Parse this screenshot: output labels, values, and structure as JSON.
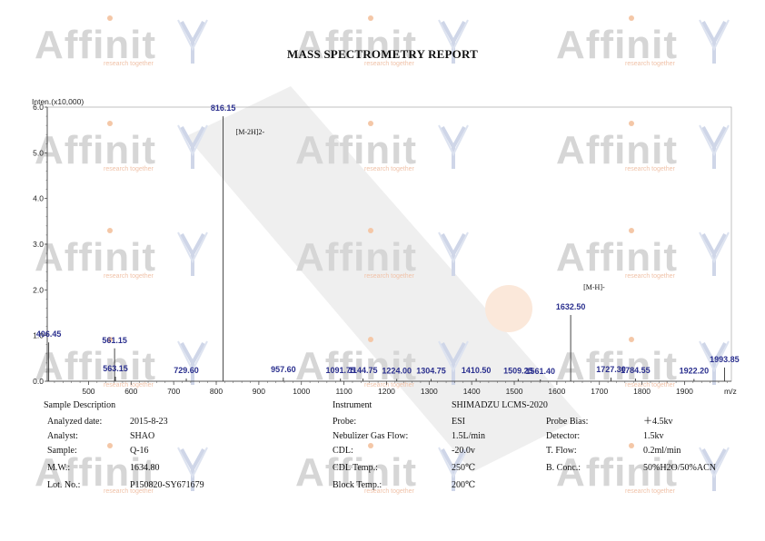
{
  "report_title": "MASS SPECTROMETRY REPORT",
  "watermark": {
    "brand": "Affinit",
    "tagline": "research together",
    "brand_color": "#d6d6d6",
    "tagline_color": "#f0c2a8"
  },
  "chart_data": {
    "type": "bar",
    "title": "",
    "ylabel": "Inten.(x10,000)",
    "xlabel": "m/z",
    "xlim": [
      403,
      2010
    ],
    "ylim": [
      0,
      6.0
    ],
    "x_ticks": [
      500,
      600,
      700,
      800,
      900,
      1000,
      1100,
      1200,
      1300,
      1400,
      1500,
      1600,
      1700,
      1800,
      1900
    ],
    "y_ticks": [
      0.0,
      1.0,
      2.0,
      3.0,
      4.0,
      5.0,
      6.0
    ],
    "grid": false,
    "peaks": [
      {
        "x": 406.45,
        "y": 0.85,
        "label": "406.45"
      },
      {
        "x": 561.15,
        "y": 0.72,
        "label": "561.15"
      },
      {
        "x": 563.15,
        "y": 0.1,
        "label": "563.15"
      },
      {
        "x": 729.6,
        "y": 0.06,
        "label": "729.60"
      },
      {
        "x": 816.15,
        "y": 5.8,
        "label": "816.15",
        "annotation": "[M-2H]2-"
      },
      {
        "x": 957.6,
        "y": 0.08,
        "label": "957.60"
      },
      {
        "x": 1091.75,
        "y": 0.06,
        "label": "1091.75"
      },
      {
        "x": 1144.75,
        "y": 0.06,
        "label": "1144.75"
      },
      {
        "x": 1224.0,
        "y": 0.05,
        "label": "1224.00"
      },
      {
        "x": 1304.75,
        "y": 0.05,
        "label": "1304.75"
      },
      {
        "x": 1410.5,
        "y": 0.06,
        "label": "1410.50"
      },
      {
        "x": 1509.25,
        "y": 0.05,
        "label": "1509.25"
      },
      {
        "x": 1561.4,
        "y": 0.04,
        "label": "1561.40"
      },
      {
        "x": 1632.5,
        "y": 1.45,
        "label": "1632.50",
        "annotation": "[M-H]-"
      },
      {
        "x": 1727.3,
        "y": 0.08,
        "label": "1727.30"
      },
      {
        "x": 1784.55,
        "y": 0.06,
        "label": "1784.55"
      },
      {
        "x": 1922.2,
        "y": 0.05,
        "label": "1922.20"
      },
      {
        "x": 1993.85,
        "y": 0.3,
        "label": "1993.85"
      }
    ],
    "line_color": "#333333",
    "label_color": "#2a2f8e"
  },
  "sample": {
    "heading": "Sample Description",
    "rows": [
      {
        "label": "Analyzed date:",
        "value": "2015-8-23"
      },
      {
        "label": "Analyst:",
        "value": "SHAO"
      },
      {
        "label": "Sample:",
        "value": "Q-16"
      },
      {
        "label": "M.W.:",
        "value": "1634.80"
      },
      {
        "label": "Lot. No.:",
        "value": "P150820-SY671679"
      }
    ]
  },
  "instrument": {
    "heading": "Instrument",
    "model": "SHIMADZU LCMS-2020",
    "left": [
      {
        "label": "Probe:",
        "value": "ESI"
      },
      {
        "label": "Nebulizer Gas Flow:",
        "value": "1.5L/min"
      },
      {
        "label": "CDL:",
        "value": "-20.0v"
      },
      {
        "label": "CDL Temp.:",
        "value": "250℃"
      },
      {
        "label": "Block Temp.:",
        "value": "200℃"
      }
    ],
    "right": [
      {
        "label": "Probe Bias:",
        "value": "＋4.5kv"
      },
      {
        "label": "Detector:",
        "value": "1.5kv"
      },
      {
        "label": "T. Flow:",
        "value": "0.2ml/min"
      },
      {
        "label": "B. Conc.:",
        "value": "50%H2O/50%ACN"
      }
    ]
  }
}
